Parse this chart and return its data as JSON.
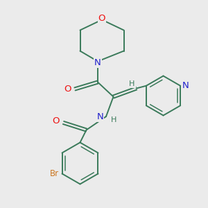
{
  "background_color": "#ebebeb",
  "bond_color": "#3a7a5a",
  "atom_colors": {
    "O": "#ee1111",
    "N": "#2222cc",
    "Br": "#cc7722",
    "H": "#3a7a5a"
  },
  "font_size": 8.5,
  "lw": 1.4
}
